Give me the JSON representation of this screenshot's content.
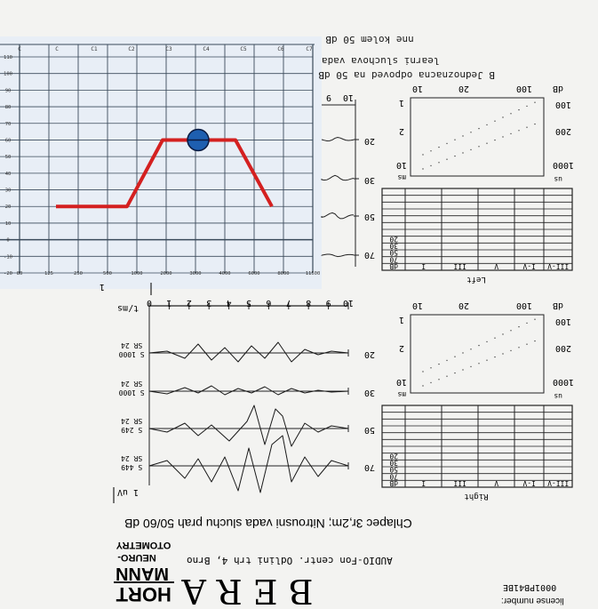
{
  "audiogram": {
    "top_labels": [
      "C",
      "C",
      "C1",
      "C2",
      "C3",
      "C4",
      "C5",
      "C6",
      "C7"
    ],
    "y_labels": [
      "110",
      "100",
      "90",
      "80",
      "70",
      "60",
      "50",
      "40",
      "30",
      "20",
      "10",
      "0",
      "-10",
      "-20"
    ],
    "x_labels": [
      "80",
      "125",
      "250",
      "500",
      "1000",
      "2000",
      "3000",
      "4000",
      "6000",
      "8000",
      "11500"
    ],
    "line_color": "#d42020",
    "marker_color": "#1e5fb0",
    "threshold_db": [
      20,
      20,
      60,
      60,
      20
    ],
    "marker_db": 60
  },
  "header_notes": {
    "line1": "nne kolem 50 dB",
    "line2": "learni sluchova vada",
    "line3": "B Jednoznacna odpoved na 50 dB"
  },
  "latency_panels": [
    {
      "top_axis": [
        "10",
        "20",
        "100",
        "dB"
      ],
      "right_axis": [
        "100",
        "200",
        "1000"
      ],
      "left_axis": [
        "1",
        "2",
        "10"
      ],
      "ms_label": "ms",
      "us_label": "us",
      "table_rows": [
        "20",
        "30",
        "50",
        "70",
        "dB"
      ],
      "table_cols": [
        "I",
        "III",
        "V",
        "I-V",
        "III-V"
      ],
      "side": "Left"
    },
    {
      "top_axis": [
        "10",
        "20",
        "100",
        "dB"
      ],
      "right_axis": [
        "100",
        "200",
        "1000"
      ],
      "left_axis": [
        "1",
        "2",
        "10"
      ],
      "ms_label": "ms",
      "us_label": "us",
      "table_rows": [
        "20",
        "30",
        "50",
        "70",
        "dB"
      ],
      "table_cols": [
        "I",
        "III",
        "V",
        "I-V",
        "III-V"
      ],
      "side": "Right"
    }
  ],
  "small_waves": {
    "axis": [
      "9",
      "10"
    ],
    "levels": [
      "20",
      "30",
      "50",
      "70"
    ]
  },
  "wave_panel": {
    "axis_unit": "t/ms",
    "ticks": [
      "0",
      "1",
      "2",
      "3",
      "4",
      "5",
      "6",
      "7",
      "8",
      "9",
      "10"
    ],
    "rows": [
      {
        "label1": "SR 24",
        "label2": "S 1000",
        "level": "20"
      },
      {
        "label1": "SR 24",
        "label2": "S 1000",
        "level": "30"
      },
      {
        "label1": "SR 24",
        "label2": "S 249",
        "level": "50"
      },
      {
        "label1": "SR 24",
        "label2": "S 449",
        "level": "70"
      }
    ],
    "scale_label": "1 uV"
  },
  "caption": "Chlapec 3r,2m; Nitrousni vada sluchu prah 50/60 dB",
  "brand": {
    "logo_line1": "HORT",
    "logo_line2": "MANN",
    "logo_line3": "NEURO-",
    "logo_line4": "OTOMETRY",
    "title": "B E R A",
    "address": "AUDIO-Fon centr. Odlini trh 4, Brno",
    "serial": "0001PB41BE",
    "license": "license number:"
  }
}
